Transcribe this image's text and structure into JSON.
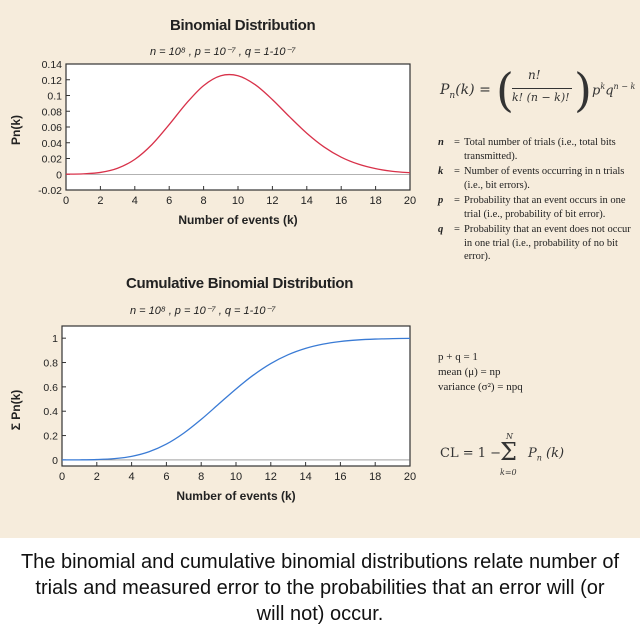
{
  "caption": "The binomial and cumulative binomial distributions relate number of trials and measured error to the probabilities that an error will (or will not) occur.",
  "formula": {
    "lhs": "P",
    "lhs_sub": "n",
    "lhs_arg": "(k) =",
    "numerator": "n!",
    "denominator": "k! (n − k)!",
    "tail": "p",
    "tail_sup1": "k",
    "tail2": "q",
    "tail_sup2": "n − k"
  },
  "definitions": [
    {
      "sym": "n",
      "text": "Total number of trials (i.e., total bits transmitted)."
    },
    {
      "sym": "k",
      "text": "Number of events occurring in n trials (i.e., bit errors)."
    },
    {
      "sym": "p",
      "text": "Probability that an event occurs in one trial (i.e., probability of bit error)."
    },
    {
      "sym": "q",
      "text": "Probability that an event does not occur in one trial (i.e., probability of no bit error)."
    }
  ],
  "relations": {
    "line1": "p + q = 1",
    "line2": "mean (μ) = np",
    "line3": "variance (σ²) = npq"
  },
  "cl_formula": {
    "lhs": "CL = 1 −",
    "sum": "Σ",
    "upper": "N",
    "lower": "k=0",
    "term": "P",
    "term_sub": "n",
    "term_arg": "(k)"
  },
  "chart_data": [
    {
      "type": "line",
      "title": "Binomial Distribution",
      "subtitle": "n = 10⁸ , p = 10⁻⁷ , q = 1-10⁻⁷",
      "xlabel": "Number of events (k)",
      "ylabel": "Pn(k)",
      "xlim": [
        0,
        20
      ],
      "ylim": [
        -0.02,
        0.14
      ],
      "xticks": [
        0,
        2,
        4,
        6,
        8,
        10,
        12,
        14,
        16,
        18,
        20
      ],
      "xtick_labels": [
        "0",
        "2",
        "4",
        "6",
        "8",
        "10",
        "12",
        "14",
        "16",
        "18",
        "20"
      ],
      "yticks": [
        -0.02,
        0,
        0.02,
        0.04,
        0.06,
        0.08,
        0.1,
        0.12,
        0.14
      ],
      "ytick_labels": [
        "-0.02",
        "0",
        "0.02",
        "0.04",
        "0.06",
        "0.08",
        "0.1",
        "0.12",
        "0.14"
      ],
      "grid": false,
      "color": "#d8324a",
      "series": [
        {
          "x": [
            0,
            1,
            2,
            3,
            4,
            5,
            6,
            7,
            8,
            9,
            10,
            11,
            12,
            13,
            14,
            15,
            16,
            17,
            18,
            19,
            20
          ],
          "values": [
            0.0001,
            0.0005,
            0.0023,
            0.0076,
            0.0189,
            0.0378,
            0.0631,
            0.0901,
            0.1126,
            0.1251,
            0.1251,
            0.1137,
            0.0948,
            0.0729,
            0.0521,
            0.0347,
            0.0217,
            0.0128,
            0.0071,
            0.0037,
            0.0019
          ]
        }
      ]
    },
    {
      "type": "line",
      "title": "Cumulative Binomial Distribution",
      "subtitle": "n = 10⁸ , p = 10⁻⁷ , q = 1-10⁻⁷",
      "xlabel": "Number of events (k)",
      "ylabel": "Σ Pn(k)",
      "xlim": [
        0,
        20
      ],
      "ylim": [
        -0.05,
        1.1
      ],
      "xticks": [
        0,
        2,
        4,
        6,
        8,
        10,
        12,
        14,
        16,
        18,
        20
      ],
      "xtick_labels": [
        "0",
        "2",
        "4",
        "6",
        "8",
        "10",
        "12",
        "14",
        "16",
        "18",
        "20"
      ],
      "yticks": [
        0,
        0.2,
        0.4,
        0.6,
        0.8,
        1
      ],
      "ytick_labels": [
        "0",
        "0.2",
        "0.4",
        "0.6",
        "0.8",
        "1"
      ],
      "grid": false,
      "color": "#3a7bd5",
      "series": [
        {
          "x": [
            0,
            1,
            2,
            3,
            4,
            5,
            6,
            7,
            8,
            9,
            10,
            11,
            12,
            13,
            14,
            15,
            16,
            17,
            18,
            19,
            20
          ],
          "values": [
            0.0001,
            0.0005,
            0.0028,
            0.0103,
            0.0293,
            0.0671,
            0.1301,
            0.2202,
            0.3328,
            0.4579,
            0.583,
            0.6968,
            0.7916,
            0.8645,
            0.9165,
            0.9513,
            0.973,
            0.9857,
            0.9928,
            0.9965,
            0.9984
          ]
        }
      ]
    }
  ]
}
